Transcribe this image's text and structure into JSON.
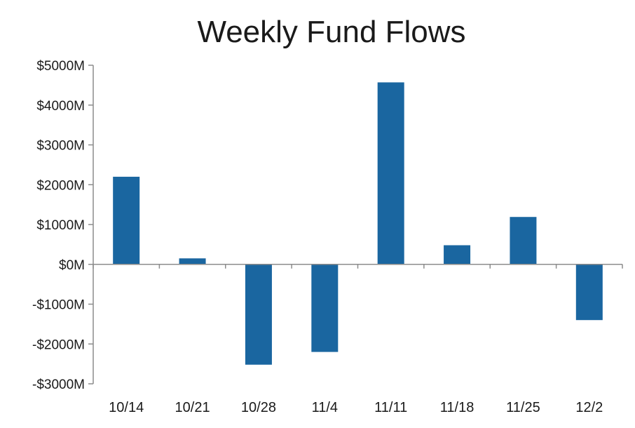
{
  "chart_data": {
    "type": "bar",
    "title": "Weekly Fund Flows",
    "categories": [
      "10/14",
      "10/21",
      "10/28",
      "11/4",
      "11/11",
      "11/18",
      "11/25",
      "12/2"
    ],
    "values": [
      2200,
      150,
      -2520,
      -2200,
      4570,
      480,
      1190,
      -1400
    ],
    "ylim": [
      -3000,
      5000
    ],
    "yticks": [
      5000,
      4000,
      3000,
      2000,
      1000,
      0,
      -1000,
      -2000,
      -3000
    ],
    "ytick_labels": [
      "$5000M",
      "$4000M",
      "$3000M",
      "$2000M",
      "$1000M",
      "$0M",
      "-$1000M",
      "-$2000M",
      "-$3000M"
    ],
    "bar_color": "#1a66a0",
    "axis_color": "#8c8c8c",
    "grid": false,
    "legend": "none"
  }
}
